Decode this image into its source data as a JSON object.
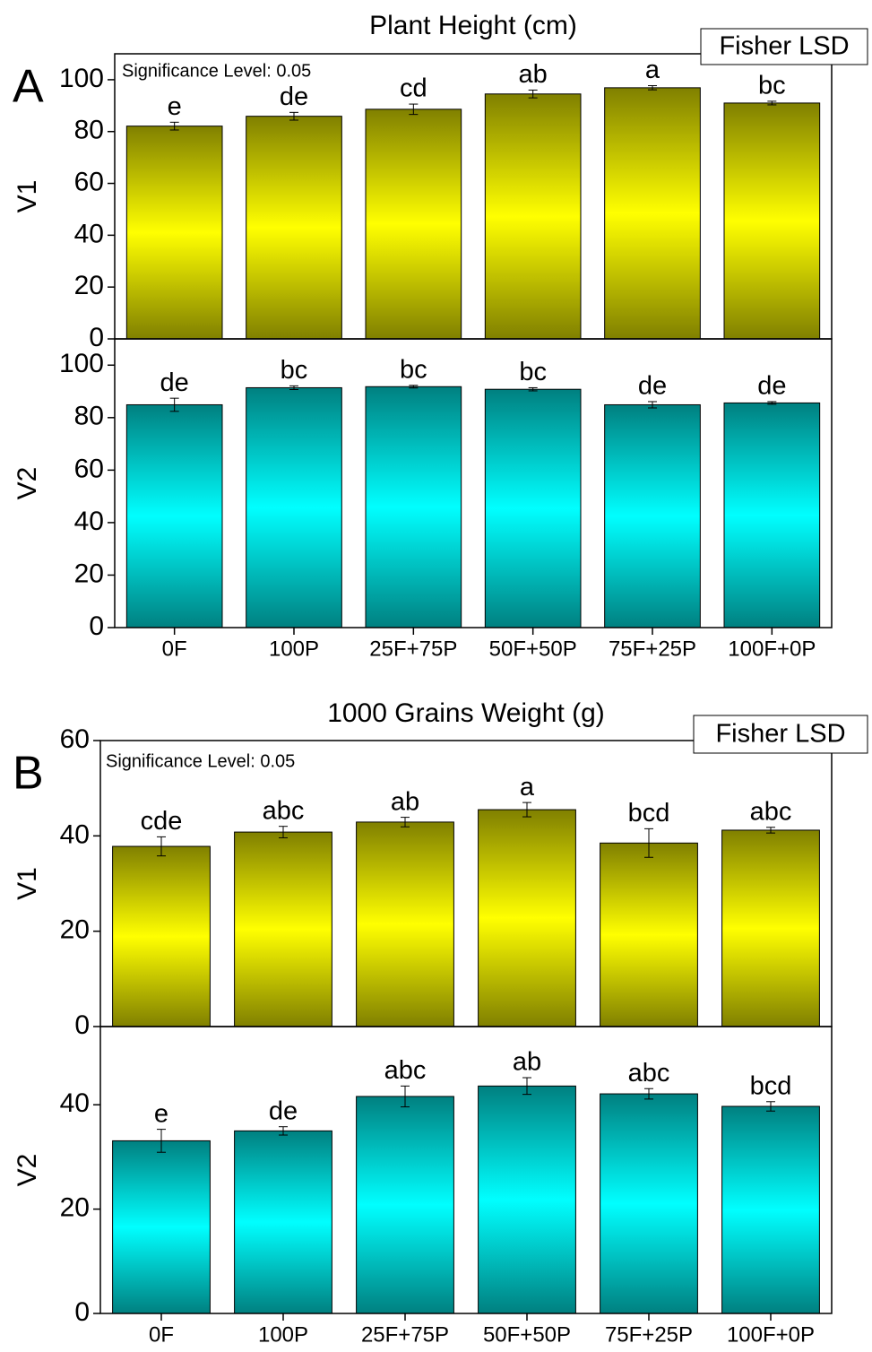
{
  "chart_data": [
    {
      "type": "bar",
      "title": "Plant Height (cm)",
      "panel_label": "A",
      "method": "Fisher LSD",
      "note": "Significance Level: 0.05",
      "categories": [
        "0F",
        "100P",
        "25F+75P",
        "50F+50P",
        "75F+25P",
        "100F+0P"
      ],
      "panels": [
        {
          "ylabel": "V1",
          "colors": [
            "#808000",
            "#ffff00"
          ],
          "values": [
            82.1,
            85.9,
            88.6,
            94.5,
            96.9,
            91.0
          ],
          "errors": [
            1.5,
            1.5,
            2.0,
            1.5,
            0.8,
            0.7
          ],
          "letters": [
            "e",
            "de",
            "cd",
            "ab",
            "a",
            "bc"
          ],
          "ylim": [
            0,
            110
          ],
          "yticks": [
            0,
            20,
            40,
            60,
            80,
            100
          ]
        },
        {
          "ylabel": "V2",
          "colors": [
            "#008080",
            "#00ffff"
          ],
          "values": [
            84.9,
            91.4,
            91.8,
            90.8,
            84.9,
            85.6
          ],
          "errors": [
            2.5,
            0.7,
            0.5,
            0.6,
            1.2,
            0.5
          ],
          "letters": [
            "de",
            "bc",
            "bc",
            "bc",
            "de",
            "de"
          ],
          "ylim": [
            0,
            110
          ],
          "yticks": [
            0,
            20,
            40,
            60,
            80,
            100
          ]
        }
      ]
    },
    {
      "type": "bar",
      "title": "1000 Grains Weight (g)",
      "panel_label": "B",
      "method": "Fisher LSD",
      "note": "Significance Level: 0.05",
      "categories": [
        "0F",
        "100P",
        "25F+75P",
        "50F+50P",
        "75F+25P",
        "100F+0P"
      ],
      "panels": [
        {
          "ylabel": "V1",
          "colors": [
            "#808000",
            "#ffff00"
          ],
          "values": [
            37.8,
            40.8,
            42.9,
            45.5,
            38.5,
            41.2
          ],
          "errors": [
            2.0,
            1.2,
            1.0,
            1.5,
            3.0,
            0.6
          ],
          "letters": [
            "cde",
            "abc",
            "ab",
            "a",
            "bcd",
            "abc"
          ],
          "ylim": [
            0,
            60
          ],
          "yticks": [
            0,
            20,
            40,
            60
          ]
        },
        {
          "ylabel": "V2",
          "colors": [
            "#008080",
            "#00ffff"
          ],
          "values": [
            33.1,
            35.0,
            41.6,
            43.6,
            42.1,
            39.7
          ],
          "errors": [
            2.2,
            0.8,
            2.0,
            1.6,
            1.0,
            0.9
          ],
          "letters": [
            "e",
            "de",
            "abc",
            "ab",
            "abc",
            "bcd"
          ],
          "ylim": [
            0,
            55
          ],
          "yticks": [
            0,
            20,
            40
          ]
        }
      ]
    }
  ]
}
